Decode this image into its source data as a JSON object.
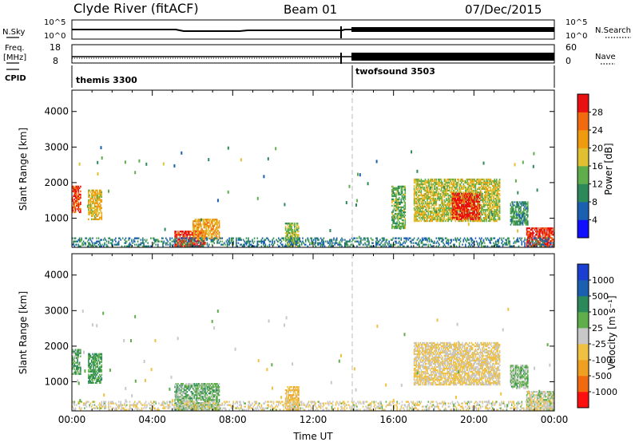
{
  "header": {
    "title": "Clyde River (fitACF)",
    "beam": "Beam 01",
    "date": "07/Dec/2015"
  },
  "strips": {
    "nsky": {
      "label": "N.Sky",
      "ticks": [
        "10^5",
        "10^0"
      ],
      "right_label": "N.Search",
      "right_ticks": [
        "10^5",
        "10^0"
      ]
    },
    "freq": {
      "label_line1": "Freq.",
      "label_line2": "[MHz]",
      "ticks": [
        "18",
        "8"
      ],
      "right_label": "Nave",
      "right_ticks": [
        "60",
        "0"
      ]
    },
    "cpid": {
      "label": "CPID",
      "programs": [
        {
          "name": "themis 3300",
          "start_hour": 0
        },
        {
          "name": "twofsound 3503",
          "start_hour": 14
        }
      ]
    }
  },
  "chart_data": [
    {
      "type": "heatmap",
      "title": "",
      "xlabel": "Time UT",
      "ylabel": "Slant Range [km]",
      "x_ticks": [
        "00:00",
        "04:00",
        "08:00",
        "12:00",
        "16:00",
        "20:00",
        "00:00"
      ],
      "xlim_hours": [
        0,
        24
      ],
      "ylim": [
        180,
        4600
      ],
      "y_ticks": [
        1000,
        2000,
        3000,
        4000
      ],
      "colorbar": {
        "label": "Power [dB]",
        "ticks": [
          "4",
          "8",
          "12",
          "16",
          "20",
          "24",
          "28"
        ],
        "range": [
          0,
          30
        ],
        "colors": [
          "#1010ff",
          "#1a5fb0",
          "#2c8a5a",
          "#5fae4b",
          "#e0c030",
          "#f09a10",
          "#f26a10",
          "#e81010"
        ]
      },
      "echo_regions": [
        {
          "t0": 0.0,
          "t1": 0.4,
          "r0": 1150,
          "r1": 1900,
          "value": 26
        },
        {
          "t0": 0.8,
          "t1": 1.5,
          "r0": 950,
          "r1": 1800,
          "value": 18
        },
        {
          "t0": 5.1,
          "t1": 6.6,
          "r0": 200,
          "r1": 650,
          "value": 28
        },
        {
          "t0": 6.0,
          "t1": 7.3,
          "r0": 400,
          "r1": 950,
          "value": 20
        },
        {
          "t0": 10.6,
          "t1": 11.3,
          "r0": 200,
          "r1": 850,
          "value": 14
        },
        {
          "t0": 15.9,
          "t1": 16.6,
          "r0": 700,
          "r1": 1900,
          "value": 12
        },
        {
          "t0": 17.0,
          "t1": 21.3,
          "r0": 900,
          "r1": 2100,
          "value": 16
        },
        {
          "t0": 18.9,
          "t1": 20.3,
          "r0": 950,
          "r1": 1700,
          "value": 28
        },
        {
          "t0": 21.8,
          "t1": 22.7,
          "r0": 800,
          "r1": 1450,
          "value": 10
        },
        {
          "t0": 22.6,
          "t1": 24.0,
          "r0": 200,
          "r1": 700,
          "value": 28
        },
        {
          "t0": 0.0,
          "t1": 24.0,
          "r0": 190,
          "r1": 420,
          "value": 8
        }
      ]
    },
    {
      "type": "heatmap",
      "title": "",
      "xlabel": "Time UT",
      "ylabel": "Slant Range [km]",
      "x_ticks": [
        "00:00",
        "04:00",
        "08:00",
        "12:00",
        "16:00",
        "20:00",
        "00:00"
      ],
      "xlim_hours": [
        0,
        24
      ],
      "ylim": [
        180,
        4600
      ],
      "y_ticks": [
        1000,
        2000,
        3000,
        4000
      ],
      "colorbar": {
        "label": "Velocity [m s⁻¹]",
        "ticks": [
          "1000",
          "500",
          "100",
          "25",
          "-25",
          "-100",
          "-500",
          "-1000"
        ],
        "range": [
          -1200,
          1200
        ],
        "colors": [
          "#ff1010",
          "#f26a10",
          "#f0a020",
          "#f0c040",
          "#c8c8c8",
          "#5fae4b",
          "#2c8a5a",
          "#1a5fb0",
          "#1a3fd0"
        ]
      },
      "echo_regions": [
        {
          "t0": 0.0,
          "t1": 0.4,
          "r0": 1200,
          "r1": 1900,
          "value": 300
        },
        {
          "t0": 0.8,
          "t1": 1.5,
          "r0": 950,
          "r1": 1800,
          "value": 400
        },
        {
          "t0": 5.1,
          "t1": 7.3,
          "r0": 200,
          "r1": 950,
          "value": 250
        },
        {
          "t0": 10.6,
          "t1": 11.3,
          "r0": 200,
          "r1": 850,
          "value": -300
        },
        {
          "t0": 17.0,
          "t1": 21.3,
          "r0": 900,
          "r1": 2100,
          "value": -150
        },
        {
          "t0": 21.8,
          "t1": 22.7,
          "r0": 800,
          "r1": 1450,
          "value": 200
        },
        {
          "t0": 22.6,
          "t1": 24.0,
          "r0": 200,
          "r1": 700,
          "value": 10
        },
        {
          "t0": 0.0,
          "t1": 24.0,
          "r0": 190,
          "r1": 420,
          "value": -80
        }
      ]
    }
  ]
}
